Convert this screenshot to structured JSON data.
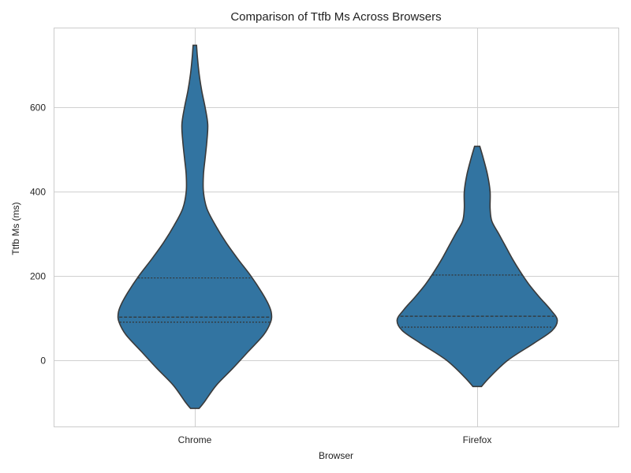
{
  "chart_data": {
    "type": "violin",
    "title": "Comparison of Ttfb Ms Across Browsers",
    "xlabel": "Browser",
    "ylabel": "Ttfb Ms (ms)",
    "categories": [
      "Chrome",
      "Firefox"
    ],
    "ylim": [
      -158,
      790
    ],
    "yticks": [
      0,
      200,
      400,
      600
    ],
    "grid": true,
    "colors": {
      "fill": "#3274a1",
      "outline": "#3a3a3a"
    },
    "series": [
      {
        "category": "Chrome",
        "range": [
          -115,
          748
        ],
        "quartiles": [
          90,
          102,
          195
        ],
        "density": [
          [
            -115,
            0.05
          ],
          [
            -100,
            0.11
          ],
          [
            -60,
            0.25
          ],
          [
            -20,
            0.44
          ],
          [
            20,
            0.62
          ],
          [
            60,
            0.8
          ],
          [
            90,
            0.88
          ],
          [
            110,
            0.89
          ],
          [
            130,
            0.86
          ],
          [
            160,
            0.78
          ],
          [
            200,
            0.65
          ],
          [
            240,
            0.5
          ],
          [
            280,
            0.36
          ],
          [
            320,
            0.24
          ],
          [
            360,
            0.14
          ],
          [
            400,
            0.1
          ],
          [
            440,
            0.1
          ],
          [
            480,
            0.12
          ],
          [
            520,
            0.14
          ],
          [
            560,
            0.15
          ],
          [
            600,
            0.12
          ],
          [
            640,
            0.08
          ],
          [
            680,
            0.05
          ],
          [
            720,
            0.03
          ],
          [
            748,
            0.02
          ]
        ]
      },
      {
        "category": "Firefox",
        "range": [
          -63,
          508
        ],
        "quartiles": [
          78,
          104,
          202
        ],
        "density": [
          [
            -63,
            0.05
          ],
          [
            -40,
            0.15
          ],
          [
            0,
            0.36
          ],
          [
            40,
            0.66
          ],
          [
            70,
            0.87
          ],
          [
            95,
            0.93
          ],
          [
            120,
            0.85
          ],
          [
            150,
            0.72
          ],
          [
            180,
            0.6
          ],
          [
            210,
            0.5
          ],
          [
            240,
            0.41
          ],
          [
            270,
            0.33
          ],
          [
            300,
            0.25
          ],
          [
            330,
            0.17
          ],
          [
            360,
            0.15
          ],
          [
            400,
            0.15
          ],
          [
            440,
            0.12
          ],
          [
            480,
            0.07
          ],
          [
            508,
            0.03
          ]
        ]
      }
    ]
  }
}
